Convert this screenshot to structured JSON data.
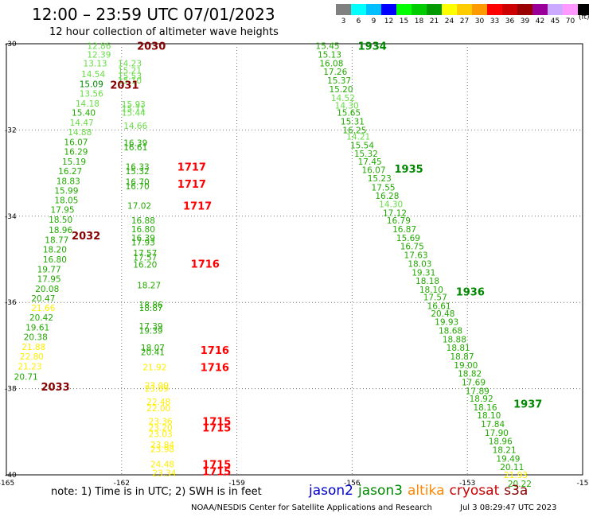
{
  "header": {
    "title": "12:00 – 23:59 UTC 07/01/2023",
    "subtitle": "12 hour collection of altimeter wave heights"
  },
  "colorbar": {
    "cells": [
      {
        "color": "#808080",
        "label": "3"
      },
      {
        "color": "#00ffff",
        "label": "6"
      },
      {
        "color": "#00bfff",
        "label": "9"
      },
      {
        "color": "#0000ff",
        "label": "12"
      },
      {
        "color": "#00ff00",
        "label": "15"
      },
      {
        "color": "#00cc00",
        "label": "18"
      },
      {
        "color": "#009900",
        "label": "21"
      },
      {
        "color": "#ffff00",
        "label": "24"
      },
      {
        "color": "#ffcc00",
        "label": "27"
      },
      {
        "color": "#ff9900",
        "label": "30"
      },
      {
        "color": "#ff0000",
        "label": "33"
      },
      {
        "color": "#cc0000",
        "label": "36"
      },
      {
        "color": "#990000",
        "label": "39"
      },
      {
        "color": "#990099",
        "label": "42"
      },
      {
        "color": "#ccaaff",
        "label": "45"
      },
      {
        "color": "#ff99ff",
        "label": "70"
      },
      {
        "color": "#000000",
        "label": "(ft)"
      }
    ]
  },
  "map": {
    "lon_ticks": [
      "-165",
      "-162",
      "-159",
      "-156",
      "-153",
      "-15"
    ],
    "lat_ticks": [
      "-30",
      "-32",
      "-34",
      "-36",
      "-38",
      "-40"
    ],
    "lon_range": [
      -165,
      -150
    ],
    "lat_range": [
      -30,
      -40
    ]
  },
  "colors": {
    "light_green": "#66dd44",
    "green": "#22aa00",
    "dark_green": "#008800",
    "yellow": "#ffee00",
    "red": "#ff0000",
    "dark_red": "#880000"
  },
  "chart_data": {
    "type": "scatter",
    "pass_labels": [
      {
        "text": "2030",
        "lon": -161.6,
        "lat": -30.05,
        "color": "dark_red"
      },
      {
        "text": "2031",
        "lon": -162.3,
        "lat": -30.95,
        "color": "dark_red"
      },
      {
        "text": "2032",
        "lon": -163.3,
        "lat": -34.45,
        "color": "dark_red"
      },
      {
        "text": "2033",
        "lon": -164.1,
        "lat": -37.95,
        "color": "dark_red"
      },
      {
        "text": "1934",
        "lon": -155.85,
        "lat": -30.05,
        "color": "dark_green"
      },
      {
        "text": "1935",
        "lon": -154.9,
        "lat": -32.9,
        "color": "dark_green"
      },
      {
        "text": "1936",
        "lon": -153.3,
        "lat": -35.75,
        "color": "dark_green"
      },
      {
        "text": "1937",
        "lon": -151.8,
        "lat": -38.35,
        "color": "dark_green"
      },
      {
        "text": "1717",
        "lon": -160.55,
        "lat": -32.85,
        "color": "red"
      },
      {
        "text": "1717",
        "lon": -160.55,
        "lat": -33.25,
        "color": "red"
      },
      {
        "text": "1717",
        "lon": -160.4,
        "lat": -33.75,
        "color": "red"
      },
      {
        "text": "1716",
        "lon": -160.2,
        "lat": -35.1,
        "color": "red"
      },
      {
        "text": "1716",
        "lon": -159.95,
        "lat": -37.1,
        "color": "red"
      },
      {
        "text": "1716",
        "lon": -159.95,
        "lat": -37.5,
        "color": "red"
      },
      {
        "text": "1715",
        "lon": -159.9,
        "lat": -38.75,
        "color": "red"
      },
      {
        "text": "1715",
        "lon": -159.9,
        "lat": -38.9,
        "color": "red"
      },
      {
        "text": "1715",
        "lon": -159.9,
        "lat": -39.75,
        "color": "red"
      },
      {
        "text": "1715",
        "lon": -159.9,
        "lat": -39.92,
        "color": "red"
      }
    ],
    "points": [
      {
        "v": "12.86",
        "lon": -162.9,
        "lat": -30.05,
        "c": "light_green"
      },
      {
        "v": "12.39",
        "lon": -162.9,
        "lat": -30.25,
        "c": "light_green"
      },
      {
        "v": "13.13",
        "lon": -163.0,
        "lat": -30.45,
        "c": "light_green"
      },
      {
        "v": "14.54",
        "lon": -163.05,
        "lat": -30.7,
        "c": "light_green"
      },
      {
        "v": "15.09",
        "lon": -163.1,
        "lat": -30.93,
        "c": "dark_green"
      },
      {
        "v": "13.56",
        "lon": -163.1,
        "lat": -31.15,
        "c": "light_green"
      },
      {
        "v": "14.18",
        "lon": -163.2,
        "lat": -31.38,
        "c": "light_green"
      },
      {
        "v": "15.40",
        "lon": -163.3,
        "lat": -31.6,
        "c": "green"
      },
      {
        "v": "14.47",
        "lon": -163.35,
        "lat": -31.83,
        "c": "light_green"
      },
      {
        "v": "14.88",
        "lon": -163.4,
        "lat": -32.05,
        "c": "light_green"
      },
      {
        "v": "16.07",
        "lon": -163.5,
        "lat": -32.28,
        "c": "green"
      },
      {
        "v": "16.29",
        "lon": -163.5,
        "lat": -32.5,
        "c": "green"
      },
      {
        "v": "15.19",
        "lon": -163.55,
        "lat": -32.73,
        "c": "green"
      },
      {
        "v": "16.27",
        "lon": -163.65,
        "lat": -32.95,
        "c": "green"
      },
      {
        "v": "18.83",
        "lon": -163.7,
        "lat": -33.18,
        "c": "green"
      },
      {
        "v": "15.99",
        "lon": -163.75,
        "lat": -33.4,
        "c": "green"
      },
      {
        "v": "18.05",
        "lon": -163.75,
        "lat": -33.63,
        "c": "green"
      },
      {
        "v": "17.95",
        "lon": -163.85,
        "lat": -33.85,
        "c": "green"
      },
      {
        "v": "18.50",
        "lon": -163.9,
        "lat": -34.08,
        "c": "green"
      },
      {
        "v": "18.96",
        "lon": -163.9,
        "lat": -34.32,
        "c": "green"
      },
      {
        "v": "18.77",
        "lon": -164.0,
        "lat": -34.55,
        "c": "green"
      },
      {
        "v": "18.20",
        "lon": -164.05,
        "lat": -34.77,
        "c": "green"
      },
      {
        "v": "16.80",
        "lon": -164.05,
        "lat": -35.0,
        "c": "green"
      },
      {
        "v": "19.77",
        "lon": -164.2,
        "lat": -35.23,
        "c": "green"
      },
      {
        "v": "17.95",
        "lon": -164.2,
        "lat": -35.45,
        "c": "green"
      },
      {
        "v": "20.08",
        "lon": -164.25,
        "lat": -35.68,
        "c": "green"
      },
      {
        "v": "20.47",
        "lon": -164.35,
        "lat": -35.9,
        "c": "green"
      },
      {
        "v": "21.66",
        "lon": -164.35,
        "lat": -36.13,
        "c": "yellow"
      },
      {
        "v": "20.42",
        "lon": -164.4,
        "lat": -36.35,
        "c": "green"
      },
      {
        "v": "19.61",
        "lon": -164.5,
        "lat": -36.58,
        "c": "green"
      },
      {
        "v": "20.38",
        "lon": -164.55,
        "lat": -36.8,
        "c": "green"
      },
      {
        "v": "21.88",
        "lon": -164.6,
        "lat": -37.03,
        "c": "yellow"
      },
      {
        "v": "22.80",
        "lon": -164.65,
        "lat": -37.25,
        "c": "yellow"
      },
      {
        "v": "21.23",
        "lon": -164.7,
        "lat": -37.48,
        "c": "yellow"
      },
      {
        "v": "20.71",
        "lon": -164.8,
        "lat": -37.72,
        "c": "green"
      },
      {
        "v": "14.23",
        "lon": -162.1,
        "lat": -30.45,
        "c": "light_green"
      },
      {
        "v": "15.21",
        "lon": -162.1,
        "lat": -30.62,
        "c": "light_green"
      },
      {
        "v": "15.53",
        "lon": -162.1,
        "lat": -30.75,
        "c": "light_green"
      },
      {
        "v": "15.10",
        "lon": -162.1,
        "lat": -30.85,
        "c": "light_green"
      },
      {
        "v": "15.93",
        "lon": -162.0,
        "lat": -31.4,
        "c": "light_green"
      },
      {
        "v": "15.71",
        "lon": -162.0,
        "lat": -31.5,
        "c": "light_green"
      },
      {
        "v": "15.44",
        "lon": -162.0,
        "lat": -31.6,
        "c": "light_green"
      },
      {
        "v": "14.66",
        "lon": -161.95,
        "lat": -31.9,
        "c": "light_green"
      },
      {
        "v": "16.39",
        "lon": -161.95,
        "lat": -32.3,
        "c": "green"
      },
      {
        "v": "16.61",
        "lon": -161.95,
        "lat": -32.4,
        "c": "green"
      },
      {
        "v": "16.33",
        "lon": -161.9,
        "lat": -32.85,
        "c": "green"
      },
      {
        "v": "15.32",
        "lon": -161.9,
        "lat": -32.95,
        "c": "green"
      },
      {
        "v": "16.70",
        "lon": -161.9,
        "lat": -33.2,
        "c": "green"
      },
      {
        "v": "16.70",
        "lon": -161.9,
        "lat": -33.3,
        "c": "green"
      },
      {
        "v": "17.02",
        "lon": -161.85,
        "lat": -33.75,
        "c": "green"
      },
      {
        "v": "16.88",
        "lon": -161.75,
        "lat": -34.1,
        "c": "green"
      },
      {
        "v": "16.80",
        "lon": -161.75,
        "lat": -34.3,
        "c": "green"
      },
      {
        "v": "16.39",
        "lon": -161.75,
        "lat": -34.5,
        "c": "green"
      },
      {
        "v": "17.93",
        "lon": -161.75,
        "lat": -34.6,
        "c": "green"
      },
      {
        "v": "17.57",
        "lon": -161.7,
        "lat": -34.85,
        "c": "green"
      },
      {
        "v": "17.57",
        "lon": -161.7,
        "lat": -34.95,
        "c": "green"
      },
      {
        "v": "16.20",
        "lon": -161.7,
        "lat": -35.12,
        "c": "green"
      },
      {
        "v": "18.27",
        "lon": -161.6,
        "lat": -35.6,
        "c": "green"
      },
      {
        "v": "18.86",
        "lon": -161.55,
        "lat": -36.05,
        "c": "green"
      },
      {
        "v": "18.87",
        "lon": -161.55,
        "lat": -36.13,
        "c": "green"
      },
      {
        "v": "17.39",
        "lon": -161.55,
        "lat": -36.55,
        "c": "green"
      },
      {
        "v": "19.39",
        "lon": -161.55,
        "lat": -36.65,
        "c": "green"
      },
      {
        "v": "18.07",
        "lon": -161.5,
        "lat": -37.05,
        "c": "green"
      },
      {
        "v": "20.41",
        "lon": -161.5,
        "lat": -37.15,
        "c": "green"
      },
      {
        "v": "21.92",
        "lon": -161.45,
        "lat": -37.5,
        "c": "yellow"
      },
      {
        "v": "23.00",
        "lon": -161.4,
        "lat": -37.92,
        "c": "yellow"
      },
      {
        "v": "23.09",
        "lon": -161.4,
        "lat": -38.0,
        "c": "yellow"
      },
      {
        "v": "22.48",
        "lon": -161.35,
        "lat": -38.3,
        "c": "yellow"
      },
      {
        "v": "22.00",
        "lon": -161.35,
        "lat": -38.45,
        "c": "yellow"
      },
      {
        "v": "23.36",
        "lon": -161.3,
        "lat": -38.75,
        "c": "yellow"
      },
      {
        "v": "23.20",
        "lon": -161.3,
        "lat": -38.9,
        "c": "yellow"
      },
      {
        "v": "23.03",
        "lon": -161.3,
        "lat": -39.05,
        "c": "yellow"
      },
      {
        "v": "23.84",
        "lon": -161.25,
        "lat": -39.3,
        "c": "yellow"
      },
      {
        "v": "23.98",
        "lon": -161.25,
        "lat": -39.4,
        "c": "yellow"
      },
      {
        "v": "24.48",
        "lon": -161.25,
        "lat": -39.75,
        "c": "yellow"
      },
      {
        "v": "23.34",
        "lon": -161.2,
        "lat": -39.95,
        "c": "yellow"
      },
      {
        "v": "15.45",
        "lon": -156.95,
        "lat": -30.05,
        "c": "green"
      },
      {
        "v": "15.13",
        "lon": -156.9,
        "lat": -30.25,
        "c": "green"
      },
      {
        "v": "16.08",
        "lon": -156.85,
        "lat": -30.45,
        "c": "green"
      },
      {
        "v": "17.26",
        "lon": -156.75,
        "lat": -30.65,
        "c": "green"
      },
      {
        "v": "15.37",
        "lon": -156.65,
        "lat": -30.85,
        "c": "green"
      },
      {
        "v": "15.20",
        "lon": -156.6,
        "lat": -31.05,
        "c": "green"
      },
      {
        "v": "14.52",
        "lon": -156.55,
        "lat": -31.25,
        "c": "light_green"
      },
      {
        "v": "14.30",
        "lon": -156.45,
        "lat": -31.43,
        "c": "light_green"
      },
      {
        "v": "15.65",
        "lon": -156.4,
        "lat": -31.6,
        "c": "green"
      },
      {
        "v": "15.31",
        "lon": -156.3,
        "lat": -31.8,
        "c": "green"
      },
      {
        "v": "16.25",
        "lon": -156.25,
        "lat": -32.0,
        "c": "green"
      },
      {
        "v": "14.21",
        "lon": -156.15,
        "lat": -32.15,
        "c": "light_green"
      },
      {
        "v": "15.54",
        "lon": -156.05,
        "lat": -32.35,
        "c": "green"
      },
      {
        "v": "15.32",
        "lon": -155.95,
        "lat": -32.55,
        "c": "green"
      },
      {
        "v": "17.45",
        "lon": -155.85,
        "lat": -32.73,
        "c": "green"
      },
      {
        "v": "16.07",
        "lon": -155.75,
        "lat": -32.92,
        "c": "green"
      },
      {
        "v": "15.23",
        "lon": -155.6,
        "lat": -33.12,
        "c": "green"
      },
      {
        "v": "17.55",
        "lon": -155.5,
        "lat": -33.33,
        "c": "green"
      },
      {
        "v": "16.28",
        "lon": -155.4,
        "lat": -33.52,
        "c": "green"
      },
      {
        "v": "14.30",
        "lon": -155.3,
        "lat": -33.72,
        "c": "light_green"
      },
      {
        "v": "17.12",
        "lon": -155.2,
        "lat": -33.92,
        "c": "green"
      },
      {
        "v": "16.79",
        "lon": -155.1,
        "lat": -34.1,
        "c": "green"
      },
      {
        "v": "16.87",
        "lon": -154.95,
        "lat": -34.3,
        "c": "green"
      },
      {
        "v": "15.69",
        "lon": -154.85,
        "lat": -34.5,
        "c": "green"
      },
      {
        "v": "16.75",
        "lon": -154.75,
        "lat": -34.7,
        "c": "green"
      },
      {
        "v": "17.63",
        "lon": -154.65,
        "lat": -34.9,
        "c": "green"
      },
      {
        "v": "18.03",
        "lon": -154.55,
        "lat": -35.1,
        "c": "green"
      },
      {
        "v": "19.31",
        "lon": -154.45,
        "lat": -35.3,
        "c": "green"
      },
      {
        "v": "18.18",
        "lon": -154.35,
        "lat": -35.5,
        "c": "green"
      },
      {
        "v": "18.10",
        "lon": -154.25,
        "lat": -35.7,
        "c": "green"
      },
      {
        "v": "17.57",
        "lon": -154.15,
        "lat": -35.88,
        "c": "green"
      },
      {
        "v": "16.61",
        "lon": -154.05,
        "lat": -36.08,
        "c": "green"
      },
      {
        "v": "20.48",
        "lon": -153.95,
        "lat": -36.25,
        "c": "green"
      },
      {
        "v": "19.93",
        "lon": -153.85,
        "lat": -36.45,
        "c": "green"
      },
      {
        "v": "18.68",
        "lon": -153.75,
        "lat": -36.65,
        "c": "green"
      },
      {
        "v": "18.88",
        "lon": -153.65,
        "lat": -36.85,
        "c": "green"
      },
      {
        "v": "18.81",
        "lon": -153.55,
        "lat": -37.05,
        "c": "green"
      },
      {
        "v": "18.87",
        "lon": -153.45,
        "lat": -37.25,
        "c": "green"
      },
      {
        "v": "19.00",
        "lon": -153.35,
        "lat": -37.45,
        "c": "green"
      },
      {
        "v": "18.82",
        "lon": -153.25,
        "lat": -37.65,
        "c": "green"
      },
      {
        "v": "17.69",
        "lon": -153.15,
        "lat": -37.85,
        "c": "green"
      },
      {
        "v": "17.89",
        "lon": -153.05,
        "lat": -38.05,
        "c": "green"
      },
      {
        "v": "18.92",
        "lon": -152.95,
        "lat": -38.23,
        "c": "green"
      },
      {
        "v": "18.16",
        "lon": -152.85,
        "lat": -38.43,
        "c": "green"
      },
      {
        "v": "18.10",
        "lon": -152.75,
        "lat": -38.62,
        "c": "green"
      },
      {
        "v": "17.84",
        "lon": -152.65,
        "lat": -38.82,
        "c": "green"
      },
      {
        "v": "17.90",
        "lon": -152.55,
        "lat": -39.02,
        "c": "green"
      },
      {
        "v": "18.96",
        "lon": -152.45,
        "lat": -39.22,
        "c": "green"
      },
      {
        "v": "18.21",
        "lon": -152.35,
        "lat": -39.42,
        "c": "green"
      },
      {
        "v": "19.49",
        "lon": -152.25,
        "lat": -39.62,
        "c": "green"
      },
      {
        "v": "20.11",
        "lon": -152.15,
        "lat": -39.82,
        "c": "green"
      },
      {
        "v": "21.93",
        "lon": -152.05,
        "lat": -40.0,
        "c": "yellow"
      },
      {
        "v": "20.22",
        "lon": -151.95,
        "lat": -40.2,
        "c": "green"
      }
    ]
  },
  "footer": {
    "note": "note: 1) Time is in UTC; 2) SWH is in feet",
    "legend": [
      {
        "text": "jason2",
        "color": "#0000cc"
      },
      {
        "text": "jason3",
        "color": "#008800"
      },
      {
        "text": "altika",
        "color": "#ff8800"
      },
      {
        "text": "cryosat",
        "color": "#cc0000"
      },
      {
        "text": "s3a",
        "color": "#880000"
      }
    ],
    "credit": "NOAA/NESDIS Center for Satellite Applications and Research",
    "timestamp": "Jul  3 08:29:47 UTC 2023"
  }
}
